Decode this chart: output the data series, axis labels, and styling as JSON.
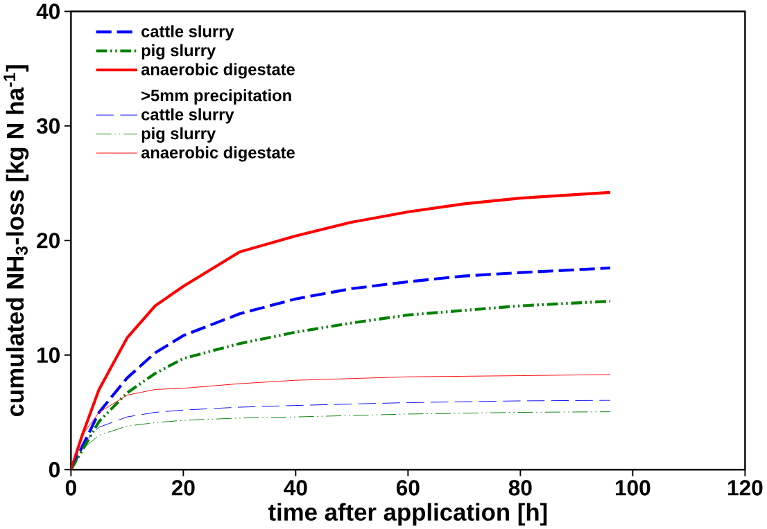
{
  "chart_data": {
    "type": "line",
    "xlabel": "time after application [h]",
    "ylabel": "cumulated NH$_{3}$-loss [kg N ha$^{-1}$]",
    "xlim": [
      0,
      120
    ],
    "ylim": [
      0,
      40
    ],
    "xticks": [
      0,
      20,
      40,
      60,
      80,
      100,
      120
    ],
    "yticks": [
      0,
      10,
      20,
      30,
      40
    ],
    "legend": "top left",
    "marker": "none",
    "annotations": [
      ">5mm precipitation"
    ],
    "series": [
      {
        "name": "cattle slurry",
        "color": "#0000ff",
        "line_style": "dashed",
        "x": [
          0,
          5,
          10,
          15,
          20,
          30,
          40,
          50,
          60,
          70,
          80,
          96
        ],
        "values": [
          0,
          5,
          8,
          10.2,
          11.7,
          13.6,
          14.9,
          15.8,
          16.4,
          16.9,
          17.2,
          17.6
        ]
      },
      {
        "name": "pig slurry",
        "color": "#008000",
        "line_style": "dashdotdotted",
        "x": [
          0,
          5,
          10,
          15,
          20,
          30,
          40,
          50,
          60,
          70,
          80,
          96
        ],
        "values": [
          0,
          4.2,
          6.7,
          8.4,
          9.7,
          11.0,
          12.0,
          12.8,
          13.5,
          13.9,
          14.3,
          14.7
        ]
      },
      {
        "name": "anaerobic digestate",
        "color": "#ff0000",
        "line_style": "solid",
        "x": [
          0,
          2,
          5,
          10,
          15,
          20,
          30,
          40,
          50,
          60,
          70,
          80,
          96
        ],
        "values": [
          0,
          3,
          7,
          11.5,
          14.3,
          16.0,
          19.0,
          20.4,
          21.6,
          22.5,
          23.2,
          23.7,
          24.2
        ]
      },
      {
        "name": "cattle slurry",
        "color": "#0000ff",
        "line_style": "dashed",
        "x": [
          0,
          2,
          5,
          10,
          15,
          20,
          30,
          40,
          60,
          80,
          96
        ],
        "values": [
          0,
          2.2,
          3.7,
          4.6,
          5.0,
          5.2,
          5.45,
          5.6,
          5.85,
          6.0,
          6.05
        ]
      },
      {
        "name": "pig slurry",
        "color": "#008000",
        "line_style": "dashdotdotted",
        "x": [
          0,
          2,
          5,
          10,
          15,
          20,
          30,
          40,
          60,
          80,
          96
        ],
        "values": [
          0,
          1.8,
          3.0,
          3.8,
          4.1,
          4.3,
          4.5,
          4.6,
          4.85,
          5.0,
          5.05
        ]
      },
      {
        "name": "anaerobic digestate",
        "color": "#ff0000",
        "line_style": "solid",
        "x": [
          0,
          2,
          5,
          10,
          15,
          20,
          30,
          40,
          60,
          80,
          96
        ],
        "values": [
          0,
          3,
          5,
          6.5,
          7.0,
          7.1,
          7.5,
          7.8,
          8.1,
          8.2,
          8.3
        ]
      }
    ]
  }
}
